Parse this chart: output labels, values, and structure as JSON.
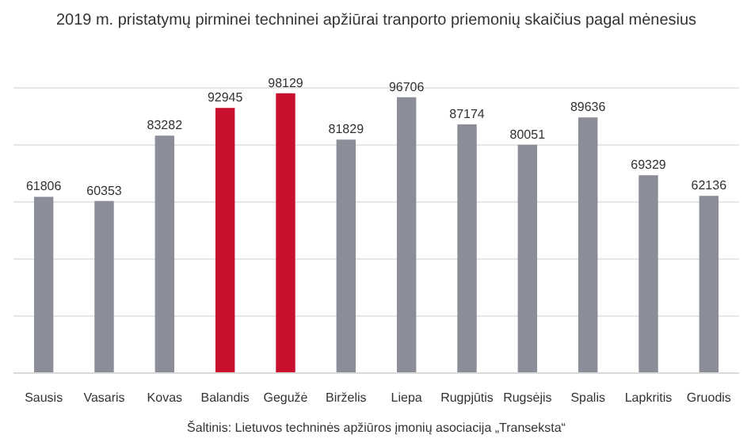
{
  "chart_data": {
    "type": "bar",
    "title": "2019 m. pristatymų pirminei techninei apžiūrai tranporto priemonių skaičius pagal mėnesius",
    "categories": [
      "Sausis",
      "Vasaris",
      "Kovas",
      "Balandis",
      "Gegužė",
      "Birželis",
      "Liepa",
      "Rugpjūtis",
      "Rugsėjis",
      "Spalis",
      "Lapkritis",
      "Gruodis"
    ],
    "values": [
      61806,
      60353,
      83282,
      92945,
      98129,
      81829,
      96706,
      87174,
      80051,
      89636,
      69329,
      62136
    ],
    "colors": [
      "#8b8e98",
      "#8b8e98",
      "#8b8e98",
      "#c8102e",
      "#c8102e",
      "#8b8e98",
      "#8b8e98",
      "#8b8e98",
      "#8b8e98",
      "#8b8e98",
      "#8b8e98",
      "#8b8e98"
    ],
    "tick_labels": "x",
    "grid": "y",
    "data_labels": true,
    "annotations": [
      "Šaltinis: Lietuvos techninės apžiūros įmonių asociacija „Transeksta“"
    ]
  }
}
